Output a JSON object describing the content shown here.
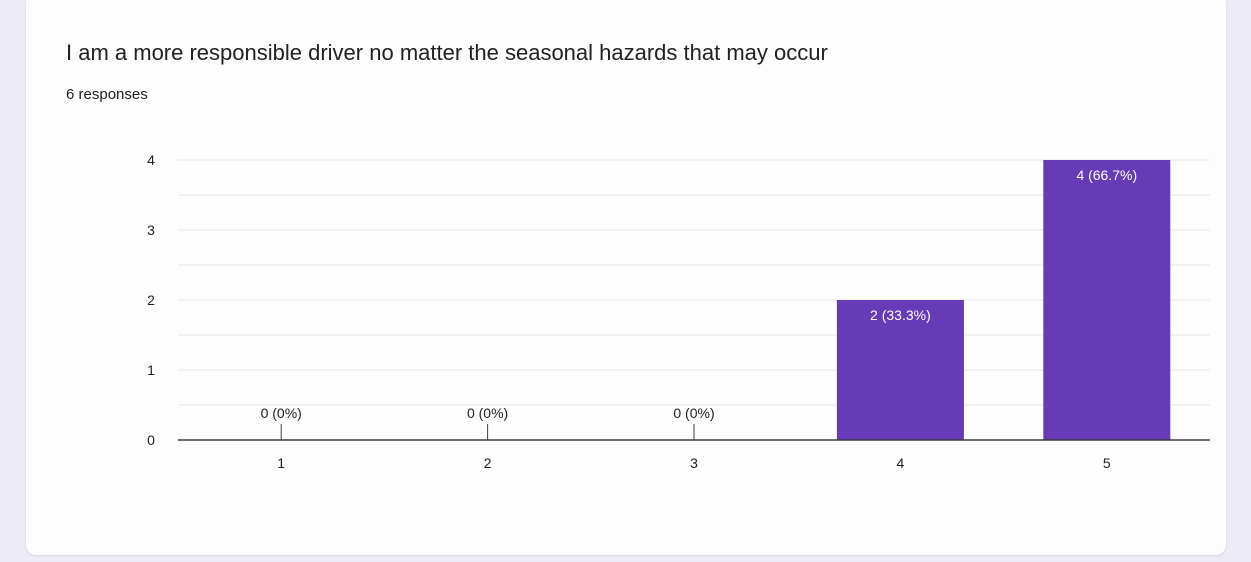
{
  "card": {
    "title": "I am a more responsible driver no matter the seasonal hazards that may occur",
    "subtitle": "6 responses"
  },
  "colors": {
    "bar": "#673ab7",
    "grid": "#e6e6e6",
    "axis": "#3c4043",
    "label": "#202124",
    "bar_label": "#ffffff"
  },
  "chart_data": {
    "type": "bar",
    "title": "I am a more responsible driver no matter the seasonal hazards that may occur",
    "categories": [
      "1",
      "2",
      "3",
      "4",
      "5"
    ],
    "values": [
      0,
      0,
      0,
      2,
      4
    ],
    "data_labels": [
      "0 (0%)",
      "0 (0%)",
      "0 (0%)",
      "2 (33.3%)",
      "4 (66.7%)"
    ],
    "y_ticks": [
      "0",
      "1",
      "2",
      "3",
      "4"
    ],
    "ylim": [
      0,
      4
    ],
    "grid": true,
    "xlabel": "",
    "ylabel": ""
  }
}
